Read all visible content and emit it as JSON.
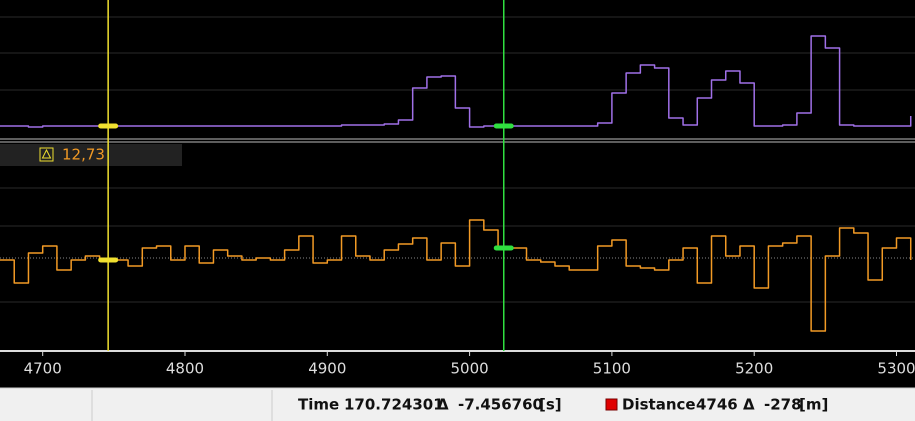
{
  "chart_data": {
    "type": "line",
    "x": [
      4670,
      4680,
      4690,
      4700,
      4710,
      4720,
      4730,
      4740,
      4750,
      4760,
      4770,
      4780,
      4790,
      4800,
      4810,
      4820,
      4830,
      4840,
      4850,
      4860,
      4870,
      4880,
      4890,
      4900,
      4910,
      4920,
      4930,
      4940,
      4950,
      4960,
      4970,
      4980,
      4990,
      5000,
      5010,
      5020,
      5030,
      5040,
      5050,
      5060,
      5070,
      5080,
      5090,
      5100,
      5110,
      5120,
      5130,
      5140,
      5150,
      5160,
      5170,
      5180,
      5190,
      5200,
      5210,
      5220,
      5230,
      5240,
      5250,
      5260,
      5270,
      5280,
      5290,
      5300,
      5310
    ],
    "xlim": [
      4670,
      5313
    ],
    "xticks": [
      4700,
      4800,
      4900,
      5000,
      5100,
      5200,
      5300
    ],
    "series": [
      {
        "color": "#a070e8",
        "ylim": [
          -8,
          120
        ],
        "values": [
          2,
          2,
          1,
          2,
          2,
          2,
          2,
          2,
          2,
          2,
          2,
          2,
          2,
          2,
          2,
          2,
          2,
          2,
          2,
          2,
          2,
          2,
          2,
          2,
          3,
          3,
          3,
          4,
          8,
          40,
          51,
          52,
          20,
          1,
          2,
          2,
          2,
          2,
          2,
          2,
          2,
          2,
          5,
          35,
          55,
          63,
          60,
          10,
          3,
          30,
          48,
          57,
          45,
          2,
          2,
          3,
          15,
          92,
          80,
          3,
          2,
          2,
          2,
          2,
          12
        ]
      },
      {
        "color": "#f29a25",
        "ylim": [
          -90,
          90
        ],
        "values": [
          -4,
          -27,
          3,
          10,
          -14,
          -4,
          0,
          -4,
          -4,
          -10,
          8,
          10,
          -4,
          10,
          -7,
          6,
          0,
          -4,
          -2,
          -4,
          6,
          20,
          -7,
          -4,
          20,
          0,
          -4,
          6,
          12,
          18,
          -4,
          13,
          -10,
          36,
          26,
          8,
          8,
          -4,
          -6,
          -10,
          -14,
          -14,
          10,
          16,
          -10,
          -12,
          -14,
          -4,
          8,
          -27,
          20,
          0,
          10,
          -32,
          10,
          13,
          20,
          -75,
          0,
          28,
          23,
          -24,
          8,
          18,
          -4
        ]
      }
    ],
    "cursors": [
      {
        "color": "#f0e030",
        "x": 4746
      },
      {
        "color": "#30e040",
        "x": 5024
      }
    ],
    "readout": "12,73",
    "status": {
      "time_label": "Time",
      "time": "170.724301",
      "delta1": "Δ",
      "time_delta": "-7.456760",
      "time_unit": "[s]",
      "distance_label": "Distance",
      "distance": "4746",
      "delta2": "Δ",
      "distance_delta": "-278",
      "distance_unit": "[m]"
    }
  }
}
